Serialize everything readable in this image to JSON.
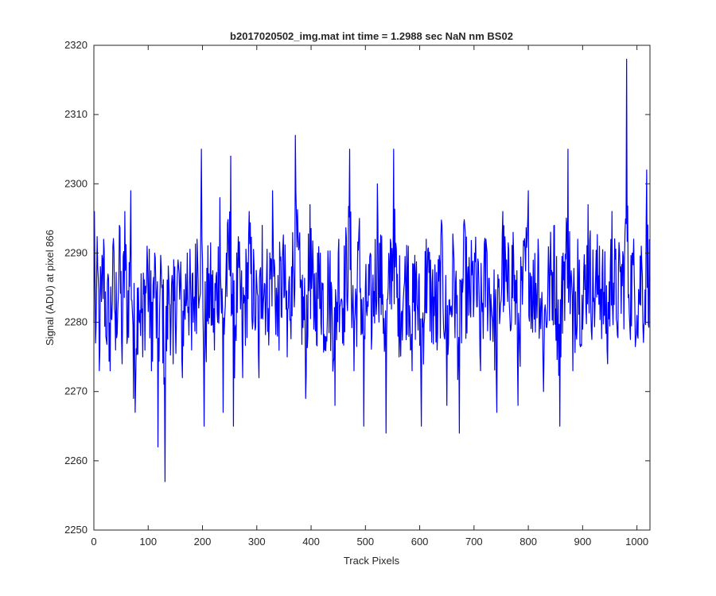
{
  "chart_data": {
    "type": "line",
    "title": "b2017020502_img.mat int time = 1.2988 sec  NaN nm BS02",
    "xlabel": "Track Pixels",
    "ylabel": "Signal (ADU) at pixel 866",
    "xlim": [
      0,
      1024
    ],
    "ylim": [
      2250,
      2320
    ],
    "xticks": [
      "0",
      "100",
      "200",
      "300",
      "400",
      "500",
      "600",
      "700",
      "800",
      "900",
      "1000"
    ],
    "yticks": [
      "2250",
      "2260",
      "2270",
      "2280",
      "2290",
      "2300",
      "2310",
      "2320"
    ],
    "grid": false,
    "series": [
      {
        "color": "#0000ff",
        "anchor_points": [
          [
            0,
            2280
          ],
          [
            1,
            2296
          ],
          [
            3,
            2277
          ],
          [
            7,
            2288
          ],
          [
            10,
            2273
          ],
          [
            14,
            2283
          ],
          [
            18,
            2292
          ],
          [
            22,
            2278
          ],
          [
            30,
            2273
          ],
          [
            35,
            2291
          ],
          [
            40,
            2276
          ],
          [
            47,
            2294
          ],
          [
            52,
            2274
          ],
          [
            57,
            2296
          ],
          [
            62,
            2278
          ],
          [
            68,
            2299
          ],
          [
            73,
            2269
          ],
          [
            76,
            2267
          ],
          [
            82,
            2285
          ],
          [
            90,
            2275
          ],
          [
            98,
            2291
          ],
          [
            106,
            2273
          ],
          [
            112,
            2290
          ],
          [
            118,
            2262
          ],
          [
            124,
            2288
          ],
          [
            131,
            2257
          ],
          [
            138,
            2286
          ],
          [
            146,
            2274
          ],
          [
            155,
            2289
          ],
          [
            163,
            2272
          ],
          [
            172,
            2290
          ],
          [
            180,
            2276
          ],
          [
            190,
            2292
          ],
          [
            198,
            2305
          ],
          [
            203,
            2265
          ],
          [
            212,
            2287
          ],
          [
            222,
            2276
          ],
          [
            232,
            2298
          ],
          [
            238,
            2267
          ],
          [
            244,
            2290
          ],
          [
            252,
            2304
          ],
          [
            257,
            2265
          ],
          [
            265,
            2289
          ],
          [
            274,
            2272
          ],
          [
            286,
            2296
          ],
          [
            296,
            2281
          ],
          [
            304,
            2272
          ],
          [
            310,
            2294
          ],
          [
            321,
            2282
          ],
          [
            329,
            2299
          ],
          [
            338,
            2278
          ],
          [
            348,
            2291
          ],
          [
            356,
            2275
          ],
          [
            364,
            2288
          ],
          [
            371,
            2307
          ],
          [
            380,
            2285
          ],
          [
            390,
            2269
          ],
          [
            398,
            2297
          ],
          [
            405,
            2279
          ],
          [
            417,
            2290
          ],
          [
            425,
            2276
          ],
          [
            432,
            2288
          ],
          [
            444,
            2268
          ],
          [
            451,
            2292
          ],
          [
            459,
            2282
          ],
          [
            471,
            2305
          ],
          [
            479,
            2273
          ],
          [
            489,
            2295
          ],
          [
            497,
            2265
          ],
          [
            504,
            2283
          ],
          [
            512,
            2278
          ],
          [
            522,
            2300
          ],
          [
            532,
            2284
          ],
          [
            538,
            2264
          ],
          [
            546,
            2292
          ],
          [
            552,
            2305
          ],
          [
            560,
            2278
          ],
          [
            571,
            2285
          ],
          [
            579,
            2291
          ],
          [
            586,
            2273
          ],
          [
            593,
            2287
          ],
          [
            603,
            2265
          ],
          [
            612,
            2292
          ],
          [
            621,
            2283
          ],
          [
            632,
            2276
          ],
          [
            641,
            2294
          ],
          [
            650,
            2268
          ],
          [
            662,
            2291
          ],
          [
            673,
            2264
          ],
          [
            681,
            2294
          ],
          [
            690,
            2281
          ],
          [
            701,
            2290
          ],
          [
            712,
            2273
          ],
          [
            722,
            2292
          ],
          [
            733,
            2281
          ],
          [
            742,
            2267
          ],
          [
            753,
            2296
          ],
          [
            762,
            2283
          ],
          [
            772,
            2293
          ],
          [
            781,
            2268
          ],
          [
            790,
            2286
          ],
          [
            800,
            2299
          ],
          [
            810,
            2283
          ],
          [
            818,
            2292
          ],
          [
            828,
            2270
          ],
          [
            838,
            2288
          ],
          [
            848,
            2294
          ],
          [
            858,
            2265
          ],
          [
            864,
            2290
          ],
          [
            873,
            2305
          ],
          [
            882,
            2273
          ],
          [
            891,
            2292
          ],
          [
            900,
            2279
          ],
          [
            910,
            2297
          ],
          [
            920,
            2283
          ],
          [
            931,
            2291
          ],
          [
            940,
            2281
          ],
          [
            946,
            2274
          ],
          [
            954,
            2296
          ],
          [
            963,
            2280
          ],
          [
            970,
            2288
          ],
          [
            978,
            2293
          ],
          [
            981,
            2318
          ],
          [
            985,
            2284
          ],
          [
            992,
            2290
          ],
          [
            1000,
            2281
          ],
          [
            1008,
            2291
          ],
          [
            1014,
            2280
          ],
          [
            1018,
            2302
          ],
          [
            1024,
            2286
          ]
        ]
      }
    ]
  }
}
